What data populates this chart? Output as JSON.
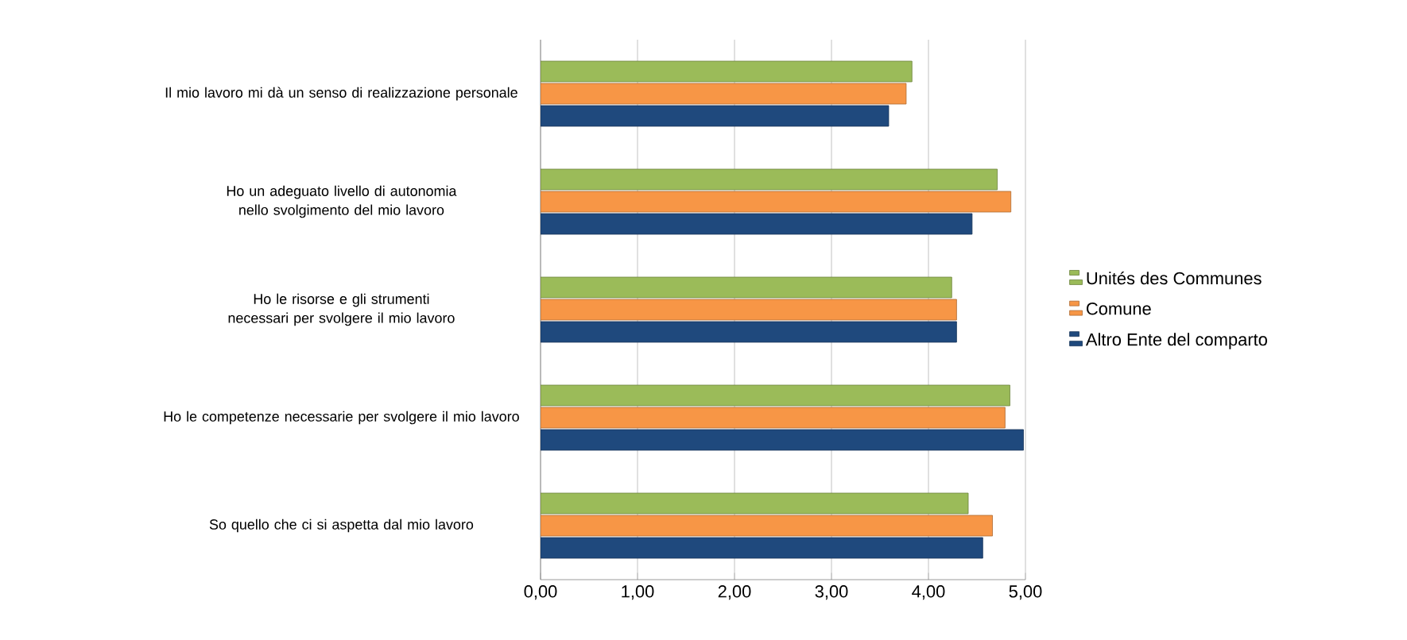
{
  "chart_data": {
    "type": "bar",
    "orientation": "horizontal",
    "categories": [
      "Il mio lavoro mi dà un senso di realizzazione personale",
      "Ho un adeguato livello di autonomia nello svolgimento del mio lavoro",
      "Ho le risorse e gli strumenti necessari per svolgere il mio lavoro",
      "Ho le competenze necessarie per svolgere il mio lavoro",
      "So quello che ci si aspetta dal mio lavoro"
    ],
    "series": [
      {
        "name": "Unités des Communes",
        "color": "#9bbb59",
        "values": [
          3.83,
          4.71,
          4.24,
          4.84,
          4.41
        ]
      },
      {
        "name": "Comune",
        "color": "#f79646",
        "values": [
          3.77,
          4.85,
          4.29,
          4.79,
          4.66
        ]
      },
      {
        "name": "Altro Ente del comparto",
        "color": "#1f497d",
        "values": [
          3.59,
          4.45,
          4.29,
          4.98,
          4.56
        ]
      }
    ],
    "xlim": [
      0,
      5
    ],
    "xticks": [
      {
        "value": 0,
        "label": "0,00"
      },
      {
        "value": 1,
        "label": "1,00"
      },
      {
        "value": 2,
        "label": "2,00"
      },
      {
        "value": 3,
        "label": "3,00"
      },
      {
        "value": 4,
        "label": "4,00"
      },
      {
        "value": 5,
        "label": "5,00"
      }
    ],
    "grid": "x",
    "legend": "right"
  }
}
